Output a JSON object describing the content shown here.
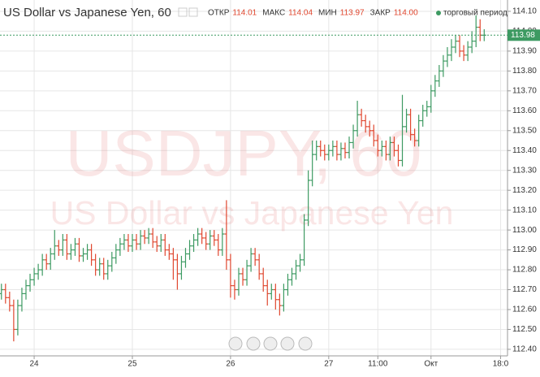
{
  "chart_data": {
    "type": "ohlc",
    "title": "US Dollar vs Japanese Yen, 60",
    "watermark": "USDJPY, 60",
    "watermark_subtitle": "US Dollar vs Japanese Yen",
    "ohlc_info": [
      {
        "label": "ОТКР",
        "value": "114.01"
      },
      {
        "label": "МАКС",
        "value": "114.04"
      },
      {
        "label": "МИН",
        "value": "113.97"
      },
      {
        "label": "ЗАКР",
        "value": "114.00"
      }
    ],
    "session_label": "торговый период",
    "last_price": {
      "value": 113.98,
      "label": "113.98"
    },
    "up_color": "#3d9a62",
    "down_color": "#e0472f",
    "ylim": [
      112.367,
      114.157
    ],
    "yticks": [
      {
        "value": 112.4,
        "label": "112.40"
      },
      {
        "value": 112.5,
        "label": "112.50"
      },
      {
        "value": 112.6,
        "label": "112.60"
      },
      {
        "value": 112.7,
        "label": "112.70"
      },
      {
        "value": 112.8,
        "label": "112.80"
      },
      {
        "value": 112.9,
        "label": "112.90"
      },
      {
        "value": 113.0,
        "label": "113.00"
      },
      {
        "value": 113.1,
        "label": "113.10"
      },
      {
        "value": 113.2,
        "label": "113.20"
      },
      {
        "value": 113.3,
        "label": "113.30"
      },
      {
        "value": 113.4,
        "label": "113.40"
      },
      {
        "value": 113.5,
        "label": "113.50"
      },
      {
        "value": 113.6,
        "label": "113.60"
      },
      {
        "value": 113.7,
        "label": "113.70"
      },
      {
        "value": 113.8,
        "label": "113.80"
      },
      {
        "value": 113.9,
        "label": "113.90"
      },
      {
        "value": 114.0,
        "label": "114.00"
      },
      {
        "value": 114.1,
        "label": "114.10"
      }
    ],
    "xlim": [
      -8.35,
      115.7
    ],
    "xticks": [
      {
        "value": 0,
        "label": "24"
      },
      {
        "value": 24,
        "label": "25"
      },
      {
        "value": 48,
        "label": "26"
      },
      {
        "value": 72,
        "label": "27"
      },
      {
        "value": 84,
        "label": "11:00"
      },
      {
        "value": 97,
        "label": "Окт"
      },
      {
        "value": 114,
        "label": "18:0"
      }
    ],
    "grid": true,
    "x": [
      -8,
      -7,
      -6,
      -5,
      -4,
      -3,
      -2,
      -1,
      0,
      1,
      2,
      3,
      4,
      5,
      6,
      7,
      8,
      9,
      10,
      11,
      12,
      13,
      14,
      15,
      16,
      17,
      18,
      19,
      20,
      21,
      22,
      23,
      24,
      25,
      26,
      27,
      28,
      29,
      30,
      31,
      32,
      33,
      34,
      35,
      36,
      37,
      38,
      39,
      40,
      41,
      42,
      43,
      44,
      45,
      46,
      47,
      48,
      49,
      50,
      51,
      52,
      53,
      54,
      55,
      56,
      57,
      58,
      59,
      60,
      61,
      62,
      63,
      64,
      65,
      66,
      67,
      68,
      69,
      70,
      71,
      72,
      73,
      74,
      75,
      76,
      77,
      78,
      79,
      80,
      81,
      82,
      83,
      84,
      85,
      86,
      87,
      88,
      89,
      90,
      91,
      92,
      93,
      94,
      95,
      96,
      97,
      98,
      99,
      100,
      101,
      102,
      103,
      104,
      105,
      106,
      107,
      108,
      109,
      110
    ],
    "open": [
      112.68,
      112.7,
      112.66,
      112.62,
      112.5,
      112.62,
      112.68,
      112.72,
      112.75,
      112.78,
      112.8,
      112.85,
      112.83,
      112.88,
      112.92,
      112.9,
      112.95,
      112.88,
      112.9,
      112.93,
      112.87,
      112.88,
      112.9,
      112.85,
      112.8,
      112.83,
      112.78,
      112.82,
      112.86,
      112.9,
      112.93,
      112.95,
      112.92,
      112.95,
      112.93,
      112.97,
      112.96,
      112.98,
      112.94,
      112.92,
      112.95,
      112.9,
      112.88,
      112.85,
      112.78,
      112.84,
      112.88,
      112.92,
      112.95,
      112.98,
      112.96,
      112.93,
      112.97,
      112.95,
      112.9,
      112.98,
      112.85,
      112.72,
      112.7,
      112.78,
      112.75,
      112.82,
      112.88,
      112.85,
      112.78,
      112.72,
      112.68,
      112.7,
      112.65,
      112.62,
      112.7,
      112.75,
      112.78,
      112.82,
      112.85,
      113.05,
      113.25,
      113.38,
      113.42,
      113.4,
      113.38,
      113.4,
      113.42,
      113.38,
      113.41,
      113.39,
      113.44,
      113.5,
      113.58,
      113.55,
      113.52,
      113.5,
      113.45,
      113.4,
      113.42,
      113.38,
      113.44,
      113.4,
      113.35,
      113.52,
      113.58,
      113.48,
      113.45,
      113.55,
      113.6,
      113.62,
      113.7,
      113.75,
      113.8,
      113.85,
      113.88,
      113.92,
      113.95,
      113.9,
      113.88,
      113.92,
      113.95,
      114.02,
      113.98
    ],
    "high": [
      112.73,
      112.73,
      112.69,
      112.65,
      112.65,
      112.71,
      112.75,
      112.78,
      112.81,
      112.83,
      112.88,
      112.88,
      112.91,
      113.0,
      112.95,
      112.98,
      112.98,
      112.93,
      112.96,
      112.96,
      112.91,
      112.93,
      112.93,
      112.88,
      112.86,
      112.86,
      112.85,
      112.89,
      112.93,
      112.96,
      112.98,
      112.98,
      112.98,
      112.98,
      113.0,
      113.0,
      113.01,
      113.01,
      112.97,
      112.98,
      112.98,
      112.93,
      112.91,
      112.88,
      112.87,
      112.91,
      112.95,
      112.98,
      113.01,
      113.01,
      112.99,
      113.0,
      113.0,
      112.98,
      113.01,
      113.15,
      112.88,
      112.75,
      112.81,
      112.81,
      112.85,
      112.91,
      112.91,
      112.88,
      112.81,
      112.75,
      112.73,
      112.73,
      112.68,
      112.73,
      112.78,
      112.81,
      112.85,
      112.88,
      113.08,
      113.3,
      113.45,
      113.45,
      113.45,
      113.43,
      113.43,
      113.45,
      113.45,
      113.44,
      113.44,
      113.47,
      113.53,
      113.65,
      113.61,
      113.58,
      113.55,
      113.53,
      113.48,
      113.45,
      113.45,
      113.47,
      113.47,
      113.43,
      113.68,
      113.61,
      113.61,
      113.51,
      113.58,
      113.63,
      113.65,
      113.73,
      113.78,
      113.83,
      113.88,
      113.92,
      113.96,
      113.98,
      113.98,
      113.93,
      113.95,
      114.0,
      114.08,
      114.06,
      114.01
    ],
    "low": [
      112.65,
      112.63,
      112.59,
      112.44,
      112.47,
      112.59,
      112.65,
      112.69,
      112.72,
      112.75,
      112.77,
      112.8,
      112.8,
      112.85,
      112.87,
      112.87,
      112.85,
      112.85,
      112.87,
      112.84,
      112.84,
      112.85,
      112.82,
      112.77,
      112.77,
      112.75,
      112.75,
      112.79,
      112.83,
      112.87,
      112.9,
      112.89,
      112.89,
      112.9,
      112.9,
      112.93,
      112.93,
      112.91,
      112.89,
      112.89,
      112.87,
      112.85,
      112.75,
      112.7,
      112.75,
      112.81,
      112.85,
      112.89,
      112.92,
      112.93,
      112.9,
      112.9,
      112.92,
      112.87,
      112.87,
      112.8,
      112.66,
      112.65,
      112.67,
      112.72,
      112.72,
      112.79,
      112.82,
      112.75,
      112.69,
      112.62,
      112.65,
      112.6,
      112.57,
      112.59,
      112.67,
      112.72,
      112.75,
      112.79,
      112.82,
      113.02,
      113.22,
      113.35,
      113.37,
      113.35,
      113.35,
      113.37,
      113.35,
      113.35,
      113.36,
      113.36,
      113.41,
      113.47,
      113.52,
      113.49,
      113.47,
      113.42,
      113.37,
      113.37,
      113.35,
      113.35,
      113.37,
      113.32,
      113.32,
      113.49,
      113.45,
      113.42,
      113.42,
      113.52,
      113.57,
      113.59,
      113.67,
      113.72,
      113.77,
      113.82,
      113.85,
      113.89,
      113.87,
      113.85,
      113.85,
      113.89,
      113.92,
      113.95,
      113.95
    ],
    "close": [
      112.7,
      112.66,
      112.62,
      112.5,
      112.62,
      112.68,
      112.72,
      112.75,
      112.78,
      112.8,
      112.85,
      112.83,
      112.88,
      112.92,
      112.9,
      112.95,
      112.88,
      112.9,
      112.93,
      112.87,
      112.88,
      112.9,
      112.85,
      112.8,
      112.83,
      112.78,
      112.82,
      112.86,
      112.9,
      112.93,
      112.95,
      112.92,
      112.95,
      112.93,
      112.97,
      112.96,
      112.98,
      112.94,
      112.92,
      112.95,
      112.9,
      112.88,
      112.85,
      112.78,
      112.84,
      112.88,
      112.92,
      112.95,
      112.98,
      112.96,
      112.93,
      112.97,
      112.95,
      112.9,
      112.98,
      112.85,
      112.72,
      112.7,
      112.78,
      112.75,
      112.82,
      112.88,
      112.85,
      112.78,
      112.72,
      112.68,
      112.7,
      112.65,
      112.62,
      112.7,
      112.75,
      112.78,
      112.82,
      112.85,
      113.05,
      113.25,
      113.38,
      113.42,
      113.4,
      113.38,
      113.4,
      113.42,
      113.38,
      113.41,
      113.39,
      113.44,
      113.5,
      113.58,
      113.55,
      113.52,
      113.5,
      113.45,
      113.4,
      113.42,
      113.38,
      113.44,
      113.4,
      113.35,
      113.52,
      113.58,
      113.48,
      113.45,
      113.55,
      113.6,
      113.62,
      113.7,
      113.75,
      113.8,
      113.85,
      113.88,
      113.92,
      113.95,
      113.9,
      113.88,
      113.92,
      113.95,
      114.02,
      113.98,
      113.98
    ]
  }
}
